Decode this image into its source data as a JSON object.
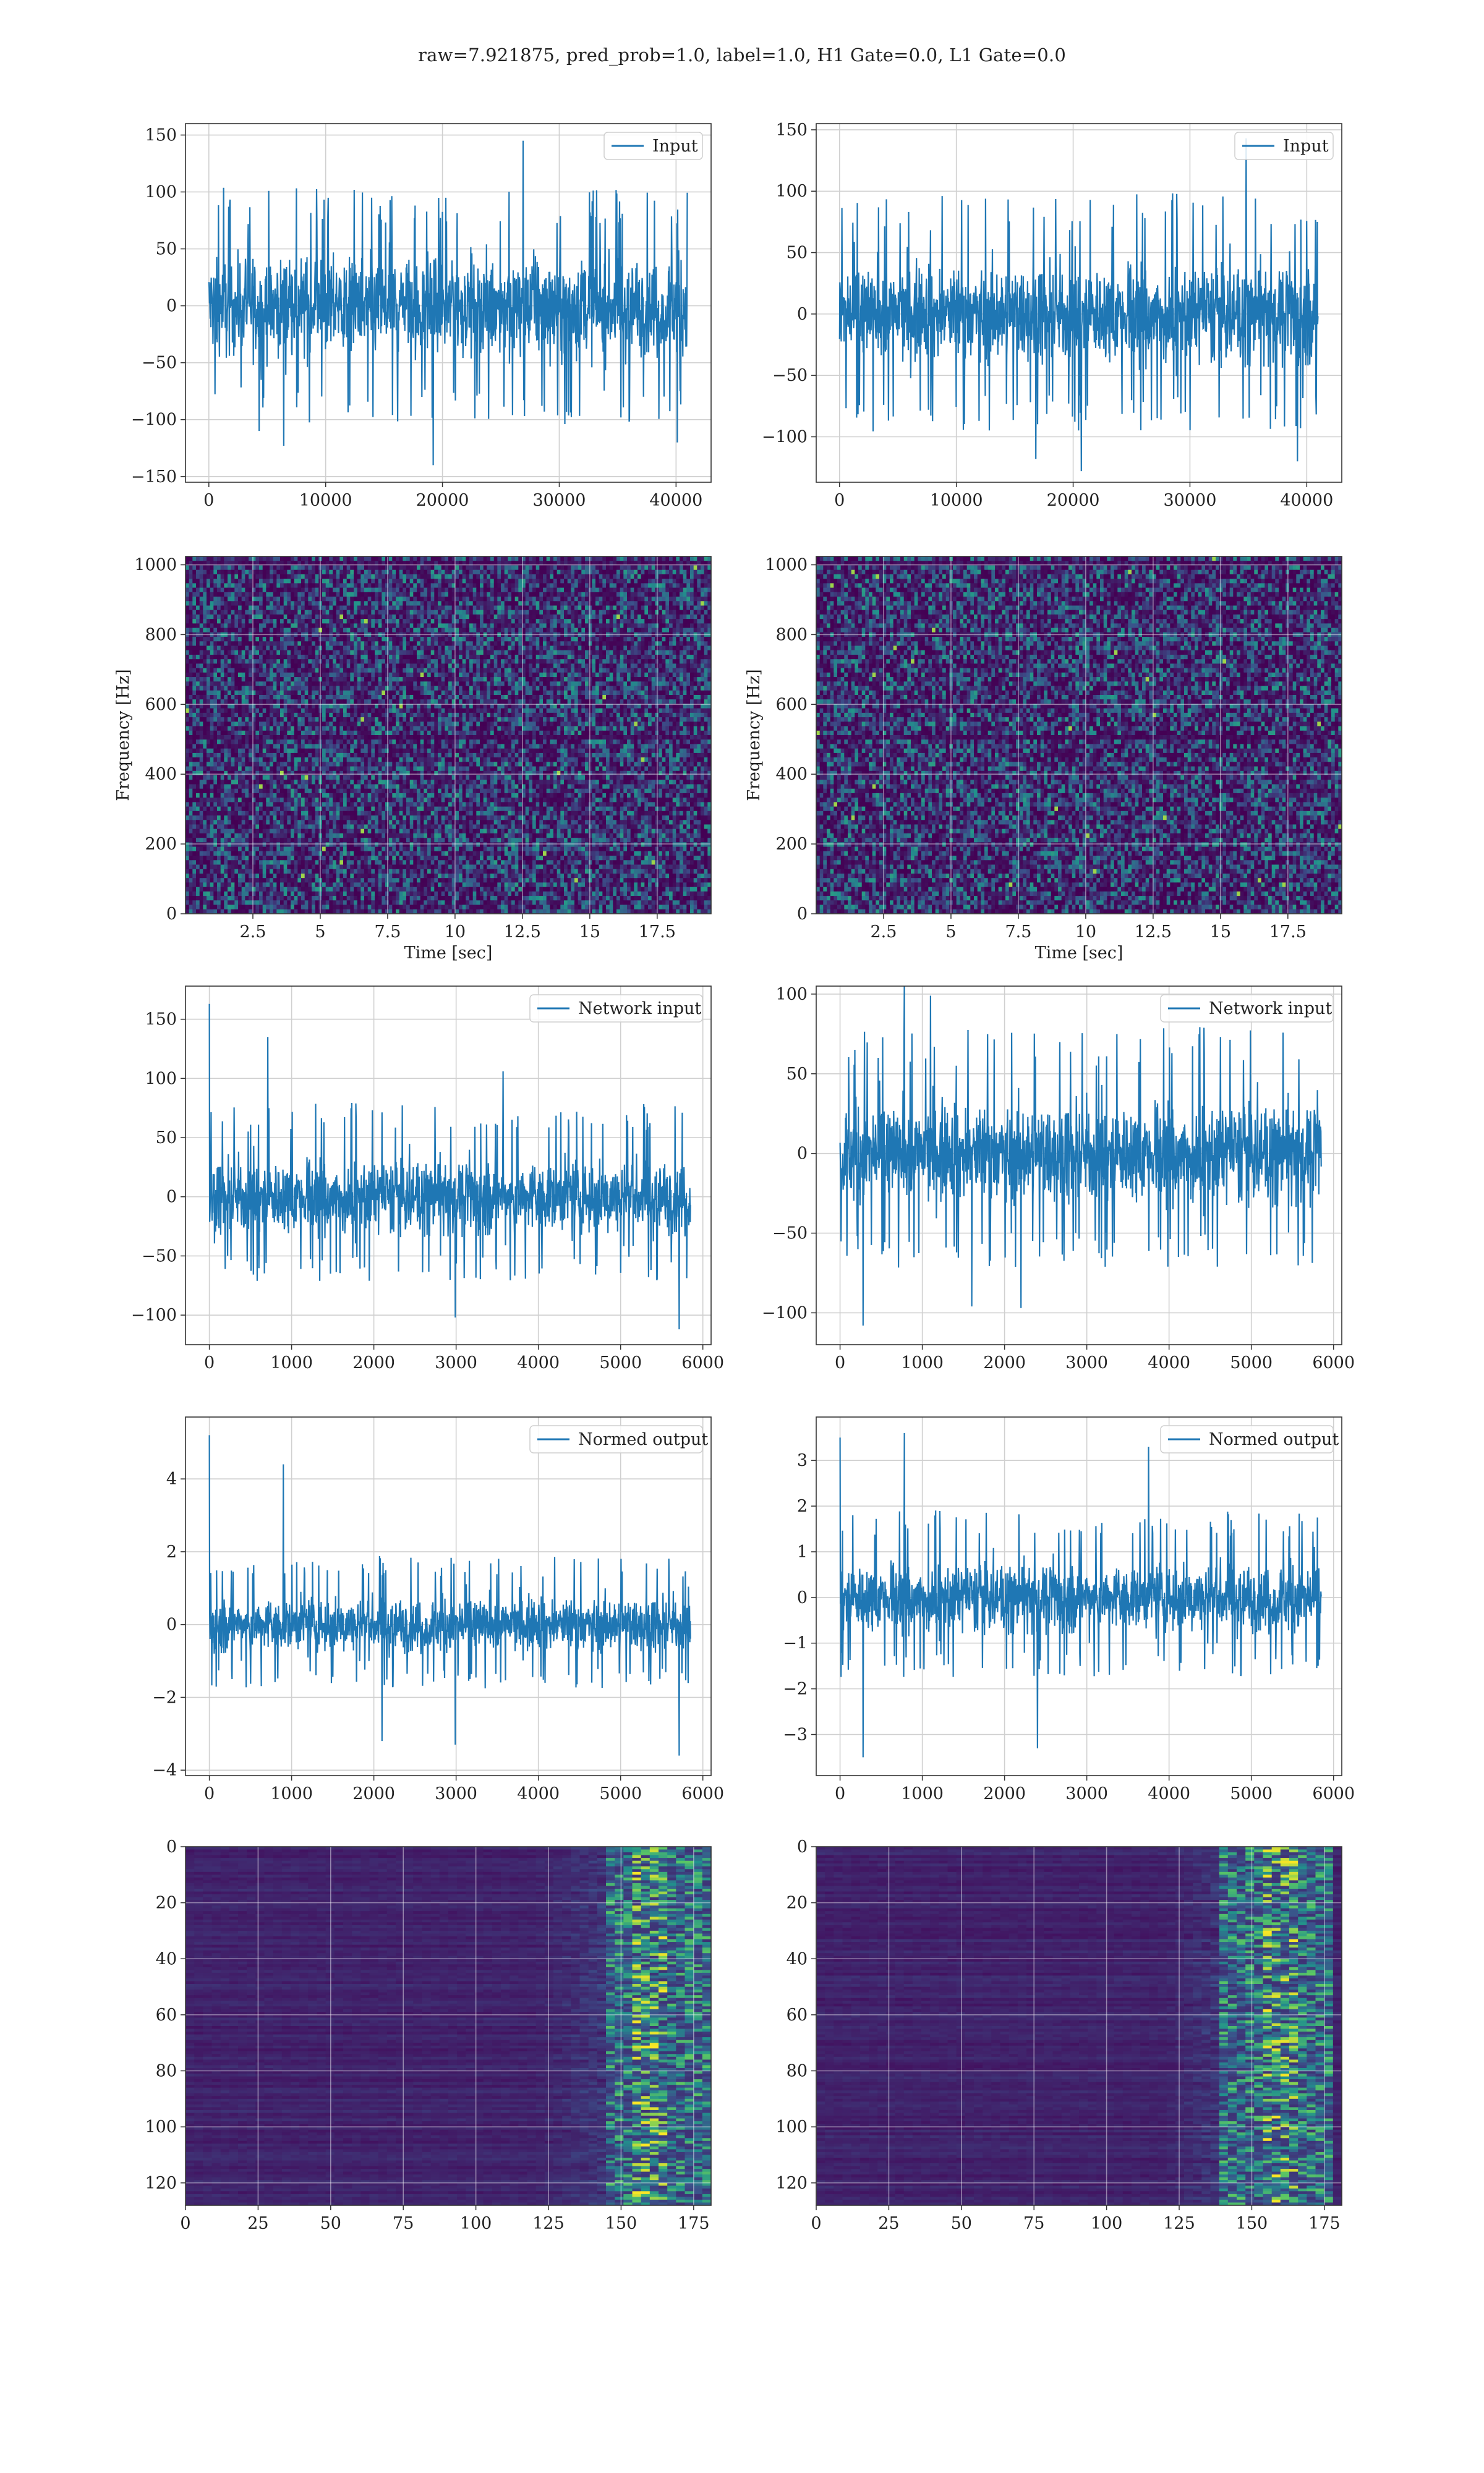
{
  "figure": {
    "title": "raw=7.921875, pred_prob=1.0, label=1.0, H1 Gate=0.0, L1 Gate=0.0",
    "colors": {
      "line": "#1f77b4",
      "grid": "#d0d0d0",
      "viridis": [
        "#440154",
        "#3b528b",
        "#21918c",
        "#5ec962",
        "#fde725"
      ]
    }
  },
  "chart_data": [
    {
      "type": "line",
      "row": 0,
      "col": 0,
      "series": [
        {
          "name": "Input",
          "x_range": [
            0,
            40960
          ],
          "amplitude_body": [
            -65,
            65
          ],
          "spikes": [
            [
              26900,
              145
            ],
            [
              19200,
              -140
            ],
            [
              6400,
              -123
            ],
            [
              40100,
              -120
            ],
            [
              4300,
              -110
            ]
          ]
        }
      ],
      "xlim": [
        -2000,
        43000
      ],
      "ylim": [
        -155,
        160
      ],
      "xticks": [
        0,
        10000,
        20000,
        30000,
        40000
      ],
      "yticks": [
        -150,
        -100,
        -50,
        0,
        50,
        100,
        150
      ],
      "xlabel": "",
      "ylabel": "",
      "legend": "top-right",
      "grid": true
    },
    {
      "type": "line",
      "row": 0,
      "col": 1,
      "series": [
        {
          "name": "Input",
          "x_range": [
            0,
            40960
          ],
          "amplitude_body": [
            -60,
            62
          ],
          "spikes": [
            [
              34800,
              143
            ],
            [
              20700,
              -128
            ],
            [
              39200,
              -120
            ],
            [
              16800,
              -118
            ]
          ]
        }
      ],
      "xlim": [
        -2000,
        43000
      ],
      "ylim": [
        -137,
        155
      ],
      "xticks": [
        0,
        10000,
        20000,
        30000,
        40000
      ],
      "yticks": [
        -100,
        -50,
        0,
        50,
        100,
        150
      ],
      "xlabel": "",
      "ylabel": "",
      "legend": "top-right",
      "grid": true
    },
    {
      "type": "heatmap",
      "row": 1,
      "col": 0,
      "kind": "spectrogram",
      "xlim": [
        0,
        19.5
      ],
      "ylim": [
        0,
        1024
      ],
      "xticks": [
        2.5,
        5.0,
        7.5,
        10.0,
        12.5,
        15.0,
        17.5
      ],
      "yticks": [
        0,
        200,
        400,
        600,
        800,
        1000
      ],
      "xlabel": "Time [sec]",
      "ylabel": "Frequency [Hz]",
      "grid": true
    },
    {
      "type": "heatmap",
      "row": 1,
      "col": 1,
      "kind": "spectrogram",
      "xlim": [
        0,
        19.5
      ],
      "ylim": [
        0,
        1024
      ],
      "xticks": [
        2.5,
        5.0,
        7.5,
        10.0,
        12.5,
        15.0,
        17.5
      ],
      "yticks": [
        0,
        200,
        400,
        600,
        800,
        1000
      ],
      "xlabel": "Time [sec]",
      "ylabel": "Frequency [Hz]",
      "grid": true
    },
    {
      "type": "line",
      "row": 2,
      "col": 0,
      "series": [
        {
          "name": "Network input",
          "x_range": [
            0,
            5850
          ],
          "amplitude_body": [
            -45,
            50
          ],
          "spikes": [
            [
              0,
              163
            ],
            [
              710,
              135
            ],
            [
              5710,
              -112
            ],
            [
              3570,
              106
            ],
            [
              2990,
              -102
            ]
          ]
        }
      ],
      "xlim": [
        -290,
        6100
      ],
      "ylim": [
        -125,
        178
      ],
      "xticks": [
        0,
        1000,
        2000,
        3000,
        4000,
        5000,
        6000
      ],
      "yticks": [
        -100,
        -50,
        0,
        50,
        100,
        150
      ],
      "xlabel": "",
      "ylabel": "",
      "legend": "top-right",
      "grid": true
    },
    {
      "type": "line",
      "row": 2,
      "col": 1,
      "series": [
        {
          "name": "Network input",
          "x_range": [
            0,
            5850
          ],
          "amplitude_body": [
            -45,
            50
          ],
          "spikes": [
            [
              780,
              110
            ],
            [
              280,
              -108
            ],
            [
              1100,
              99
            ],
            [
              1600,
              -96
            ],
            [
              2200,
              -97
            ]
          ]
        }
      ],
      "xlim": [
        -290,
        6100
      ],
      "ylim": [
        -120,
        105
      ],
      "xticks": [
        0,
        1000,
        2000,
        3000,
        4000,
        5000,
        6000
      ],
      "yticks": [
        -100,
        -50,
        0,
        50,
        100
      ],
      "xlabel": "",
      "ylabel": "",
      "legend": "top-right",
      "grid": true
    },
    {
      "type": "line",
      "row": 3,
      "col": 0,
      "series": [
        {
          "name": "Normed output",
          "x_range": [
            0,
            5850
          ],
          "amplitude_body": [
            -1.1,
            1.2
          ],
          "spikes": [
            [
              0,
              5.2
            ],
            [
              900,
              4.4
            ],
            [
              5710,
              -3.6
            ],
            [
              2990,
              -3.3
            ],
            [
              2100,
              -3.2
            ]
          ]
        }
      ],
      "xlim": [
        -290,
        6100
      ],
      "ylim": [
        -4.15,
        5.7
      ],
      "xticks": [
        0,
        1000,
        2000,
        3000,
        4000,
        5000,
        6000
      ],
      "yticks": [
        -4,
        -2,
        0,
        2,
        4
      ],
      "xlabel": "",
      "ylabel": "",
      "legend": "top-right",
      "grid": true
    },
    {
      "type": "line",
      "row": 3,
      "col": 1,
      "series": [
        {
          "name": "Normed output",
          "x_range": [
            0,
            5850
          ],
          "amplitude_body": [
            -1.1,
            1.2
          ],
          "spikes": [
            [
              780,
              3.6
            ],
            [
              0,
              3.5
            ],
            [
              280,
              -3.5
            ],
            [
              3750,
              3.3
            ],
            [
              2400,
              -3.3
            ]
          ]
        }
      ],
      "xlim": [
        -290,
        6100
      ],
      "ylim": [
        -3.9,
        3.95
      ],
      "xticks": [
        0,
        1000,
        2000,
        3000,
        4000,
        5000,
        6000
      ],
      "yticks": [
        -3,
        -2,
        -1,
        0,
        1,
        2,
        3
      ],
      "xlabel": "",
      "ylabel": "",
      "legend": "top-right",
      "grid": true
    },
    {
      "type": "heatmap",
      "row": 4,
      "col": 0,
      "kind": "activation",
      "rows": 128,
      "cols": 181,
      "active_band": [
        145,
        180
      ],
      "xlim": [
        0,
        181
      ],
      "ylim": [
        128,
        0
      ],
      "xticks": [
        0,
        25,
        50,
        75,
        100,
        125,
        150,
        175
      ],
      "yticks": [
        0,
        20,
        40,
        60,
        80,
        100,
        120
      ],
      "xlabel": "",
      "ylabel": "",
      "grid": true
    },
    {
      "type": "heatmap",
      "row": 4,
      "col": 1,
      "kind": "activation",
      "rows": 128,
      "cols": 181,
      "active_band": [
        140,
        178
      ],
      "xlim": [
        0,
        181
      ],
      "ylim": [
        128,
        0
      ],
      "xticks": [
        0,
        25,
        50,
        75,
        100,
        125,
        150,
        175
      ],
      "yticks": [
        0,
        20,
        40,
        60,
        80,
        100,
        120
      ],
      "xlabel": "",
      "ylabel": "",
      "grid": true
    }
  ]
}
